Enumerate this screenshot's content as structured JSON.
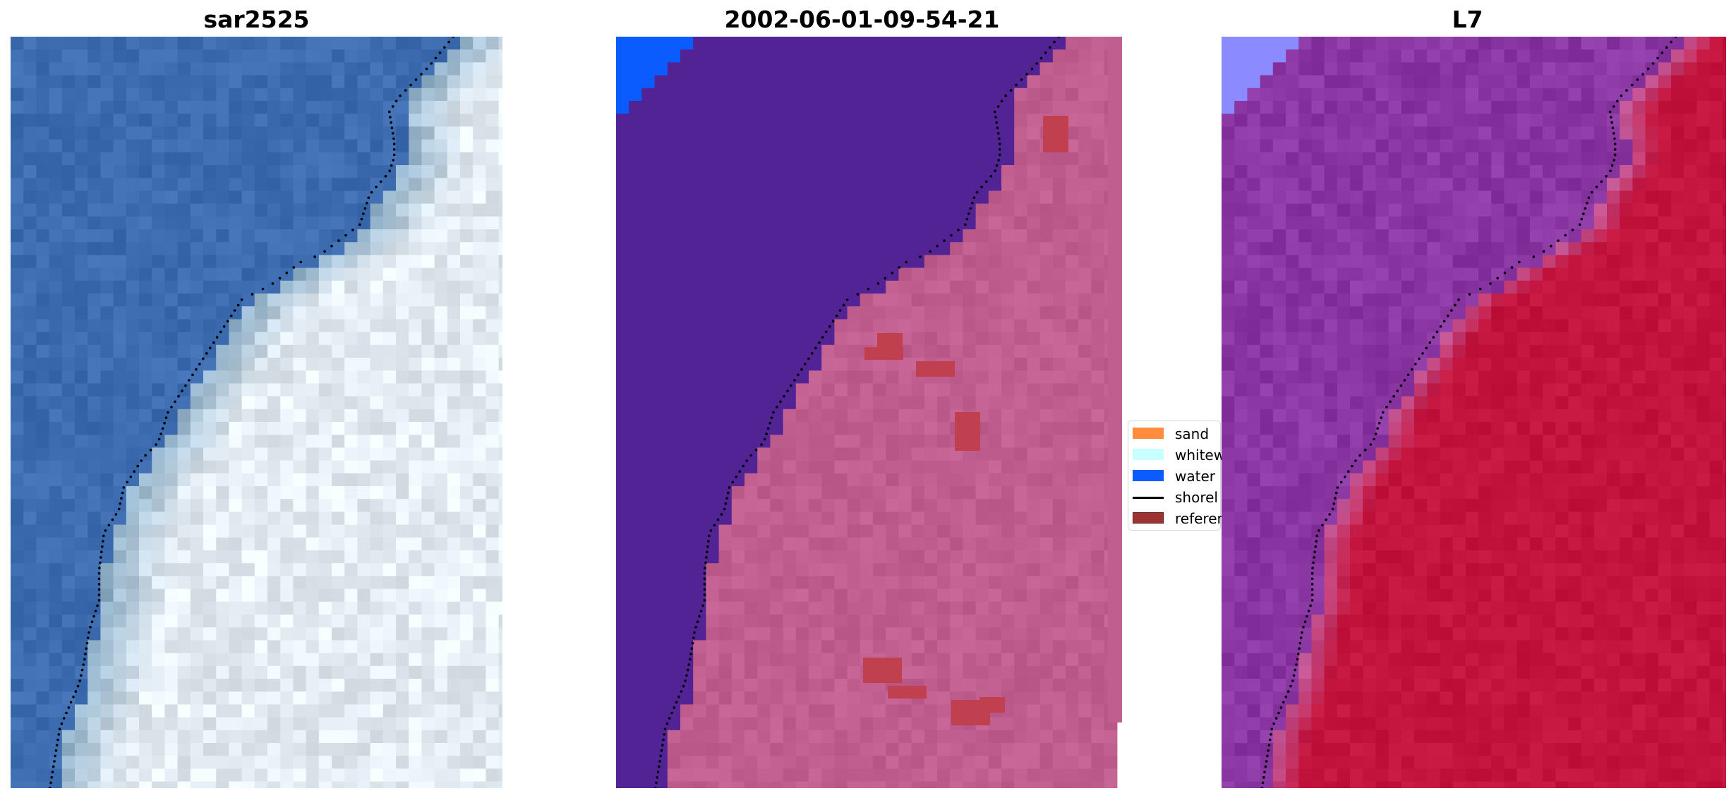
{
  "panels": [
    {
      "title": "sar2525"
    },
    {
      "title": "2002-06-01-09-54-21"
    },
    {
      "title": "L7"
    }
  ],
  "legend": {
    "items": [
      {
        "label": "sand",
        "color": "#fe8c3c"
      },
      {
        "label": "whitew",
        "color": "#c8ffff"
      },
      {
        "label": "water",
        "color": "#0a5cff"
      },
      {
        "label": "shorel",
        "color": "#000000"
      },
      {
        "label": "referen",
        "color": "#9e3333"
      }
    ]
  },
  "colors": {
    "water_rgb": "#3e6cb0",
    "water_class": "#522394",
    "land_class": "#c05f8f",
    "reference": "#c0404f",
    "water_index": "#8a37a3",
    "land_index": "#c2143c",
    "bright_water": "#0a5cff",
    "bright_index": "#8b8bff"
  }
}
